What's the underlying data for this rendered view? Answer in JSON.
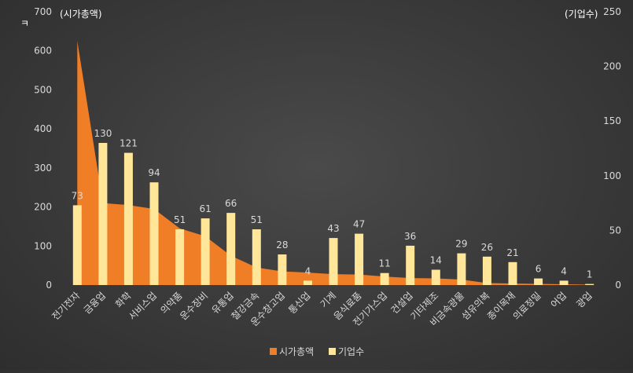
{
  "chart_data": {
    "type": "bar",
    "categories": [
      "전기전자",
      "금융업",
      "화학",
      "서비스업",
      "의약품",
      "운수장비",
      "유통업",
      "철강금속",
      "운수창고업",
      "통신업",
      "기계",
      "음식료품",
      "전기가스업",
      "건설업",
      "기타제조",
      "비금속광물",
      "섬유의복",
      "종이목재",
      "의료정밀",
      "어업",
      "광업"
    ],
    "series": [
      {
        "name": "시가총액",
        "type": "area",
        "axis": "left",
        "color": "#F07E26",
        "values": [
          625,
          210,
          205,
          195,
          145,
          125,
          75,
          45,
          35,
          32,
          28,
          27,
          22,
          18,
          17,
          14,
          5,
          4,
          3,
          2,
          1
        ]
      },
      {
        "name": "기업수",
        "type": "bar",
        "axis": "right",
        "color": "#FFE699",
        "values": [
          73,
          130,
          121,
          94,
          51,
          61,
          66,
          51,
          28,
          4,
          43,
          47,
          11,
          36,
          14,
          29,
          26,
          21,
          6,
          4,
          1
        ]
      }
    ],
    "y_left": {
      "unit": "(시가총액)",
      "label": "ㅋ",
      "ticks": [
        0,
        100,
        200,
        300,
        400,
        500,
        600,
        700
      ],
      "lim": [
        0,
        700
      ]
    },
    "y_right": {
      "unit": "(기업수)",
      "ticks": [
        0,
        50,
        100,
        150,
        200,
        250
      ],
      "lim": [
        0,
        250
      ]
    },
    "legend_position": "bottom",
    "grid": false
  }
}
